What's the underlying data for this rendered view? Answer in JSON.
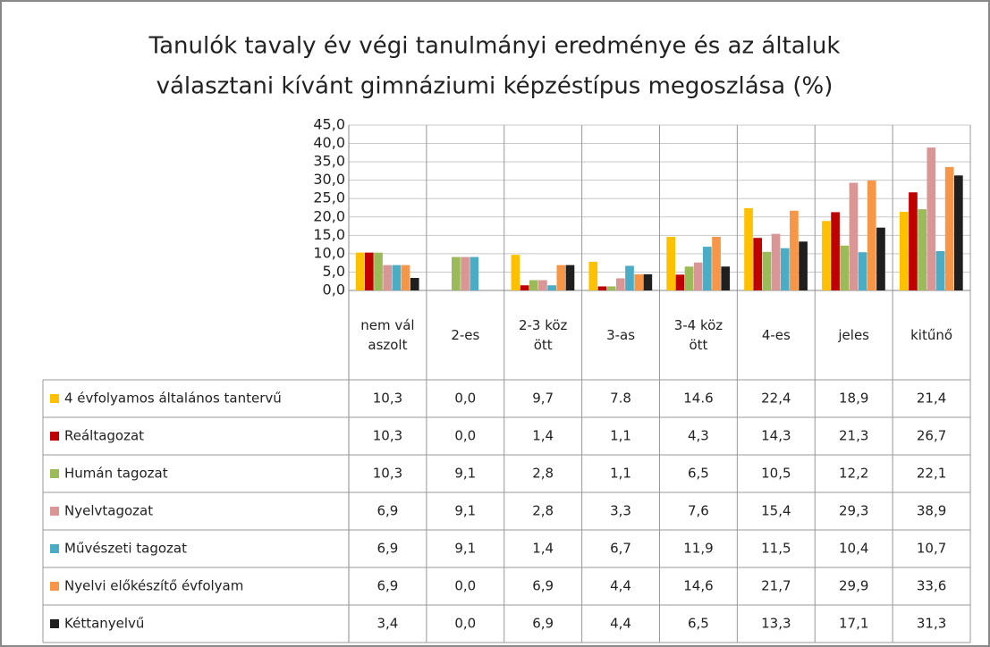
{
  "chart_data": {
    "type": "bar",
    "title": [
      "Tanulók tavaly év végi tanulmányi eredménye és az általuk",
      "választani kívánt gimnáziumi képzéstípus megoszlása (%)"
    ],
    "categories": [
      "nem válaszolt",
      "2-es",
      "2-3 között",
      "3-as",
      "3-4 között",
      "4-es",
      "jeles",
      "kitűnő"
    ],
    "ylim": [
      0,
      45
    ],
    "yticks": [
      {
        "value": 0,
        "label": "0,0"
      },
      {
        "value": 5,
        "label": "5,0"
      },
      {
        "value": 10,
        "label": "10,0"
      },
      {
        "value": 15,
        "label": "15,0"
      },
      {
        "value": 20,
        "label": "20,0"
      },
      {
        "value": 25,
        "label": "25,0"
      },
      {
        "value": 30,
        "label": "30,0"
      },
      {
        "value": 35,
        "label": "35,0"
      },
      {
        "value": 40,
        "label": "40,0"
      },
      {
        "value": 45,
        "label": "45,0"
      }
    ],
    "grid": true,
    "series": [
      {
        "name": "4 évfolyamos általános tantervű",
        "color": "#FFC000",
        "values": [
          10.3,
          0.0,
          9.7,
          7.8,
          14.6,
          22.4,
          18.9,
          21.4
        ],
        "value_labels": [
          "10,3",
          "0,0",
          "9,7",
          "7.8",
          "14.6",
          "22,4",
          "18,9",
          "21,4"
        ]
      },
      {
        "name": "Reáltagozat",
        "color": "#C00000",
        "values": [
          10.3,
          0.0,
          1.4,
          1.1,
          4.3,
          14.3,
          21.3,
          26.7
        ],
        "value_labels": [
          "10,3",
          "0,0",
          "1,4",
          "1,1",
          "4,3",
          "14,3",
          "21,3",
          "26,7"
        ]
      },
      {
        "name": "Humán tagozat",
        "color": "#9BBB59",
        "values": [
          10.3,
          9.1,
          2.8,
          1.1,
          6.5,
          10.5,
          12.2,
          22.1
        ],
        "value_labels": [
          "10,3",
          "9,1",
          "2,8",
          "1,1",
          "6,5",
          "10,5",
          "12,2",
          "22,1"
        ]
      },
      {
        "name": "Nyelvtagozat",
        "color": "#D99694",
        "values": [
          6.9,
          9.1,
          2.8,
          3.3,
          7.6,
          15.4,
          29.3,
          38.9
        ],
        "value_labels": [
          "6,9",
          "9,1",
          "2,8",
          "3,3",
          "7,6",
          "15,4",
          "29,3",
          "38,9"
        ]
      },
      {
        "name": "Művészeti tagozat",
        "color": "#4BACC6",
        "values": [
          6.9,
          9.1,
          1.4,
          6.7,
          11.9,
          11.5,
          10.4,
          10.7
        ],
        "value_labels": [
          "6,9",
          "9,1",
          "1,4",
          "6,7",
          "11,9",
          "11,5",
          "10,4",
          "10,7"
        ]
      },
      {
        "name": "Nyelvi előkészítő évfolyam",
        "color": "#F79646",
        "values": [
          6.9,
          0.0,
          6.9,
          4.4,
          14.6,
          21.7,
          29.9,
          33.6
        ],
        "value_labels": [
          "6,9",
          "0,0",
          "6,9",
          "4,4",
          "14,6",
          "21,7",
          "29,9",
          "33,6"
        ]
      },
      {
        "name": "Kéttanyelvű",
        "color": "#1F1F1F",
        "values": [
          3.4,
          0.0,
          6.9,
          4.4,
          6.5,
          13.3,
          17.1,
          31.3
        ],
        "value_labels": [
          "3,4",
          "0,0",
          "6,9",
          "4,4",
          "6,5",
          "13,3",
          "17,1",
          "31,3"
        ]
      }
    ]
  }
}
